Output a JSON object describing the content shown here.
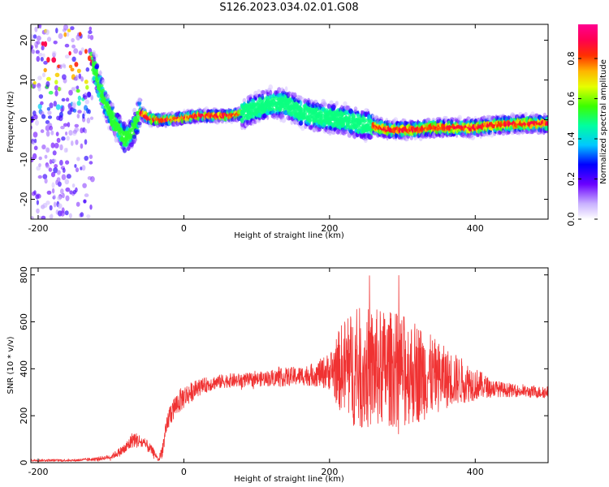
{
  "title": "S126.2023.034.02.01.G08",
  "chart_data": [
    {
      "type": "heatmap",
      "xlabel": "Height of straight line (km)",
      "ylabel": "Frequency (Hz)",
      "xlim": [
        -210,
        500
      ],
      "ylim": [
        -25,
        24
      ],
      "xticks": [
        -200,
        0,
        200,
        400
      ],
      "yticks": [
        -20,
        -10,
        0,
        10,
        20
      ],
      "ridge": {
        "x": [
          -130,
          -120,
          -110,
          -100,
          -90,
          -80,
          -70,
          -60,
          -50,
          -40,
          -20,
          0,
          20,
          40,
          60,
          80,
          100,
          120,
          140,
          160,
          180,
          200,
          220,
          240,
          260,
          280,
          300,
          320,
          340,
          360,
          380,
          400,
          420,
          440,
          460,
          480,
          500
        ],
        "y": [
          17,
          11,
          5,
          1,
          -2,
          -5,
          -3,
          2,
          0.5,
          0,
          0,
          0.5,
          1,
          1,
          1,
          1.5,
          3,
          4,
          4,
          2,
          1,
          0.5,
          0,
          -1,
          -1.5,
          -2.5,
          -2.5,
          -2.5,
          -2,
          -2,
          -2,
          -2,
          -1.5,
          -1.2,
          -1,
          -1,
          -1
        ]
      },
      "colorbar": {
        "label": "Normalized spectral amplitude",
        "ticks": [
          0.0,
          0.2,
          0.4,
          0.6,
          0.8
        ],
        "range": [
          0,
          0.97
        ]
      }
    },
    {
      "type": "line",
      "xlabel": "Height of straight line (km)",
      "ylabel": "SNR (10 * v/v)",
      "xlim": [
        -210,
        500
      ],
      "ylim": [
        0,
        830
      ],
      "xticks": [
        -200,
        0,
        200,
        400
      ],
      "yticks": [
        0,
        200,
        400,
        600,
        800
      ],
      "color": "#f03232",
      "series": [
        {
          "x": [
            -210,
            -180,
            -150,
            -120,
            -100,
            -80,
            -70,
            -60,
            -50,
            -40,
            -35,
            -30,
            -20,
            -10,
            0,
            20,
            40,
            60,
            80,
            100,
            120,
            140,
            160,
            180,
            200,
            220,
            240,
            260,
            280,
            300,
            320,
            340,
            360,
            380,
            400,
            420,
            440,
            460,
            480,
            500
          ],
          "mean": [
            10,
            10,
            10,
            15,
            25,
            60,
            100,
            90,
            70,
            40,
            10,
            50,
            200,
            250,
            280,
            320,
            340,
            350,
            350,
            355,
            360,
            365,
            370,
            375,
            390,
            400,
            400,
            400,
            400,
            395,
            385,
            370,
            360,
            350,
            335,
            320,
            310,
            305,
            300,
            300
          ],
          "spread": [
            5,
            5,
            5,
            8,
            10,
            25,
            35,
            30,
            25,
            15,
            5,
            30,
            50,
            50,
            50,
            35,
            30,
            30,
            30,
            30,
            35,
            40,
            40,
            50,
            80,
            220,
            260,
            260,
            250,
            240,
            220,
            170,
            130,
            100,
            70,
            40,
            30,
            25,
            25,
            25
          ]
        }
      ]
    }
  ]
}
